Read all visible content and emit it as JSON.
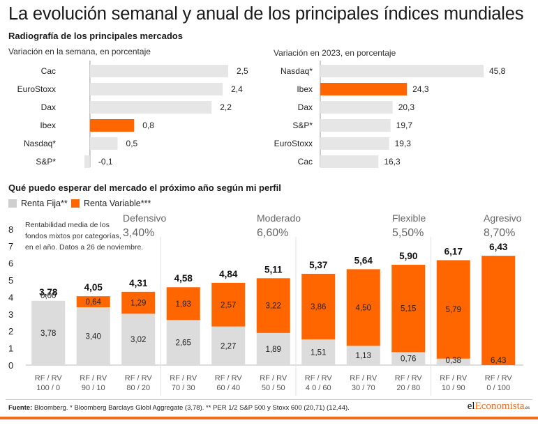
{
  "title": "La evolución semanal y anual de los principales índices mundiales",
  "section1_title": "Radiografía de los principales mercados",
  "section2_title": "Qué puedo esperar del mercado el próximo año según mi perfil",
  "colors": {
    "orange": "#ff6600",
    "gray_bar": "#e6e6e6",
    "rf_bar": "#dcdcdc",
    "axis": "#999999"
  },
  "legend": {
    "rf": "Renta Fija**",
    "rv": "Renta Variable***"
  },
  "footer": {
    "source_label": "Fuente:",
    "source_text": " Bloomberg. * Bloomberg Barclays Globl Aggregate (3,78). ** PER 1/2 S&P 500 y Stoxx 600 (20,71) (12,44).",
    "brand_pre": "el",
    "brand_accent": "Economista",
    "brand_suffix": ".es"
  },
  "chart_data": [
    {
      "type": "bar",
      "orientation": "horizontal",
      "subtitle": "Variación en la semana, en porcentaje",
      "categories": [
        "Cac",
        "EuroStoxx",
        "Dax",
        "Ibex",
        "Nasdaq*",
        "S&P*"
      ],
      "values": [
        2.5,
        2.4,
        2.2,
        0.8,
        0.5,
        -0.1
      ],
      "labels": [
        "2,5",
        "2,4",
        "2,2",
        "0,8",
        "0,5",
        "-0,1"
      ],
      "highlight": "Ibex",
      "xlim": [
        -0.1,
        2.5
      ]
    },
    {
      "type": "bar",
      "orientation": "horizontal",
      "subtitle": "Variación en 2023, en porcentaje",
      "categories": [
        "Nasdaq*",
        "Ibex",
        "Dax",
        "S&P*",
        "EuroStoxx",
        "Cac"
      ],
      "values": [
        45.8,
        24.3,
        20.3,
        19.7,
        19.3,
        16.3
      ],
      "labels": [
        "45,8",
        "24,3",
        "20,3",
        "19,7",
        "19,3",
        "16,3"
      ],
      "highlight": "Ibex",
      "xlim": [
        0,
        45.8
      ]
    },
    {
      "type": "bar",
      "stacked": true,
      "categories": [
        "RF / RV 100 / 0",
        "RF / RV 90 / 10",
        "RF / RV 80 / 20",
        "RF / RV 70 / 30",
        "RF / RV 60 / 40",
        "RF / RV 50 / 50",
        "RF / RV 4 0 / 60",
        "RF / RV 30 / 70",
        "RF / RV 20 / 80",
        "RF / RV 10 / 90",
        "RF / RV 0 / 100"
      ],
      "category_lines": [
        [
          "RF / RV",
          "100 / 0"
        ],
        [
          "RF / RV",
          "90 / 10"
        ],
        [
          "RF / RV",
          "80 / 20"
        ],
        [
          "RF / RV",
          "70 / 30"
        ],
        [
          "RF / RV",
          "60 / 40"
        ],
        [
          "RF / RV",
          "50 / 50"
        ],
        [
          "RF / RV",
          "4 0 / 60"
        ],
        [
          "RF / RV",
          "30 / 70"
        ],
        [
          "RF / RV",
          "20 / 80"
        ],
        [
          "RF / RV",
          "10 / 90"
        ],
        [
          "RF / RV",
          "0 / 100"
        ]
      ],
      "series": [
        {
          "name": "Renta Fija**",
          "values": [
            3.78,
            3.4,
            3.02,
            2.65,
            2.27,
            1.89,
            1.51,
            1.13,
            0.76,
            0.38,
            0.0
          ],
          "labels": [
            "3,78",
            "3,40",
            "3,02",
            "2,65",
            "2,27",
            "1,89",
            "1,51",
            "1,13",
            "0,76",
            "0,38",
            ""
          ]
        },
        {
          "name": "Renta Variable***",
          "values": [
            0.0,
            0.64,
            1.29,
            1.93,
            2.57,
            3.22,
            3.86,
            4.5,
            5.15,
            5.79,
            6.43
          ],
          "labels": [
            "0,00",
            "0,64",
            "1,29",
            "1,93",
            "2,57",
            "3,22",
            "3,86",
            "4,50",
            "5,15",
            "5,79",
            "6,43"
          ]
        }
      ],
      "totals": [
        3.78,
        4.05,
        4.31,
        4.58,
        4.84,
        5.11,
        5.37,
        5.64,
        5.9,
        6.17,
        6.43
      ],
      "total_labels": [
        "3,78",
        "4,05",
        "4,31",
        "4,58",
        "4,84",
        "5,11",
        "5,37",
        "5,64",
        "5,90",
        "6,17",
        "6,43"
      ],
      "rf_zero_label": "0,00",
      "ylim": [
        0,
        8
      ],
      "yticks": [
        "0",
        "1",
        "2",
        "3",
        "4",
        "5",
        "6",
        "7",
        "8"
      ],
      "note": "Rentabilidad media de los fondos mixtos por categorías, en el año. Datos a 26 de noviembre.",
      "note_lines": [
        "Rentabilidad media de los",
        "fondos mixtos por categorías,",
        "en el año. Datos a 26 de noviembre."
      ],
      "profiles": [
        {
          "name": "Defensivo",
          "value": "3,40%"
        },
        {
          "name": "Moderado",
          "value": "6,60%"
        },
        {
          "name": "Flexible",
          "value": "5,50%"
        },
        {
          "name": "Agresivo",
          "value": "8,70%"
        }
      ]
    }
  ]
}
